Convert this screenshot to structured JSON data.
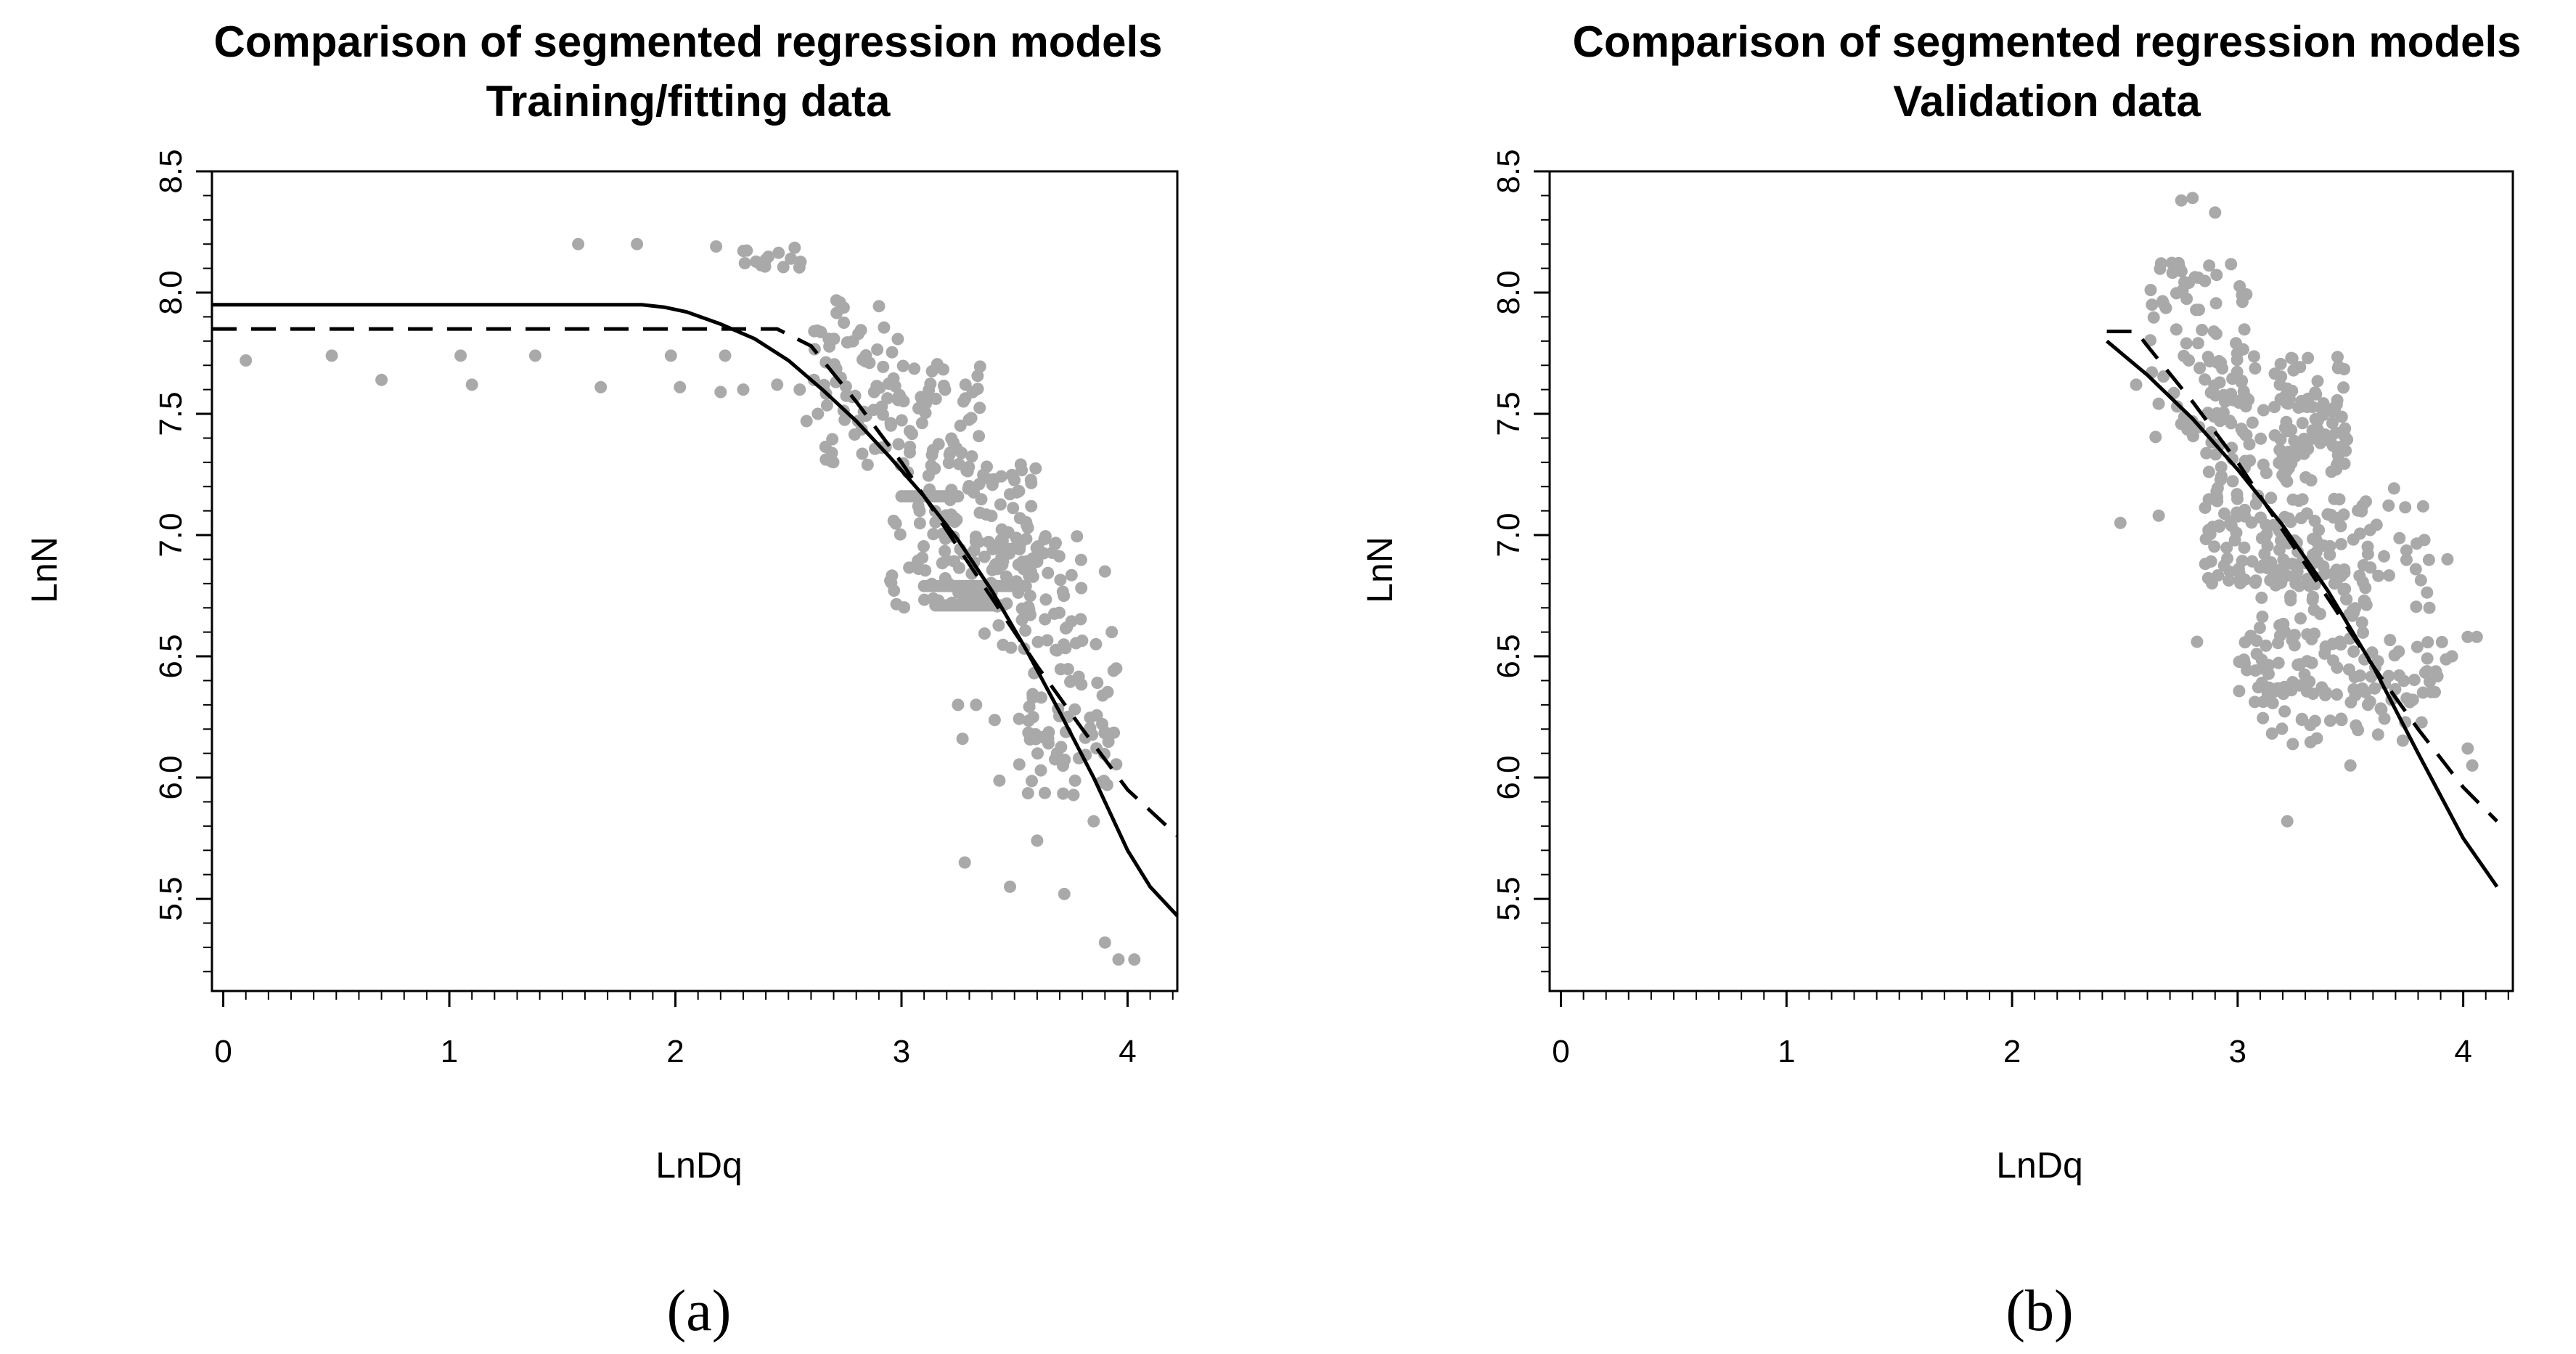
{
  "chart_data": [
    {
      "type": "scatter",
      "title": "Comparison of segmented regression models",
      "subtitle": "Training/fitting data",
      "xlabel": "LnDq",
      "ylabel": "LnN",
      "caption": "(a)",
      "xlim": [
        -0.05,
        4.22
      ],
      "ylim": [
        5.12,
        8.5
      ],
      "xticks": [
        "0",
        "1",
        "2",
        "3",
        "4"
      ],
      "yticks": [
        "5.5",
        "6.0",
        "6.5",
        "7.0",
        "7.5",
        "8.0",
        "8.5"
      ],
      "grid": false,
      "point_color": "#a9a9a9",
      "scatter_seed": 11,
      "points": [
        [
          0.1,
          7.72
        ],
        [
          0.48,
          7.74
        ],
        [
          0.7,
          7.64
        ],
        [
          1.05,
          7.74
        ],
        [
          1.1,
          7.62
        ],
        [
          1.38,
          7.74
        ],
        [
          1.57,
          8.2
        ],
        [
          1.67,
          7.61
        ],
        [
          1.83,
          8.2
        ],
        [
          1.98,
          7.74
        ],
        [
          2.02,
          7.61
        ],
        [
          2.18,
          8.19
        ],
        [
          2.2,
          7.59
        ],
        [
          2.22,
          7.74
        ],
        [
          2.3,
          7.6
        ],
        [
          2.45,
          7.62
        ],
        [
          2.55,
          7.6
        ],
        [
          2.58,
          7.47
        ],
        [
          2.63,
          7.5
        ],
        [
          2.85,
          7.29
        ],
        [
          3.33,
          6.3
        ],
        [
          3.25,
          6.3
        ],
        [
          3.27,
          6.16
        ],
        [
          3.28,
          5.65
        ],
        [
          3.48,
          5.55
        ],
        [
          3.6,
          5.74
        ],
        [
          3.72,
          5.52
        ],
        [
          3.85,
          5.82
        ],
        [
          3.9,
          5.32
        ],
        [
          3.96,
          5.25
        ],
        [
          4.03,
          5.25
        ],
        [
          3.93,
          6.6
        ],
        [
          3.95,
          6.45
        ],
        [
          3.9,
          6.85
        ],
        [
          3.86,
          6.55
        ]
      ],
      "point_clusters": [
        {
          "x": [
            2.27,
            2.63
          ],
          "y": [
            8.1,
            8.2
          ],
          "n": 14
        },
        {
          "x": [
            2.6,
            3.0
          ],
          "y": [
            7.55,
            7.97
          ],
          "n": 40
        },
        {
          "x": [
            2.65,
            3.35
          ],
          "y": [
            7.3,
            7.72
          ],
          "n": 80
        },
        {
          "x": [
            2.95,
            3.6
          ],
          "y": [
            6.7,
            7.3
          ],
          "n": 130
        },
        {
          "x": [
            3.3,
            3.8
          ],
          "y": [
            6.5,
            7.0
          ],
          "n": 70
        },
        {
          "x": [
            3.55,
            3.95
          ],
          "y": [
            5.85,
            6.5
          ],
          "n": 55
        },
        {
          "x": [
            3.4,
            3.7
          ],
          "y": [
            5.85,
            6.3
          ],
          "n": 10
        }
      ],
      "point_rows": [
        {
          "y": 6.71,
          "x": [
            3.15,
            3.45
          ],
          "n": 26
        },
        {
          "y": 6.79,
          "x": [
            3.1,
            3.55
          ],
          "n": 30
        },
        {
          "x": [
            3.0,
            3.25
          ],
          "y": 7.16,
          "n": 22
        }
      ],
      "series": [
        {
          "name": "solid",
          "style": "solid",
          "x": [
            -0.05,
            1.85,
            1.95,
            2.05,
            2.2,
            2.35,
            2.5,
            2.65,
            2.8,
            2.95,
            3.1,
            3.25,
            3.4,
            3.55,
            3.7,
            3.85,
            4.0,
            4.1,
            4.22
          ],
          "y": [
            7.95,
            7.95,
            7.94,
            7.92,
            7.87,
            7.81,
            7.72,
            7.6,
            7.47,
            7.32,
            7.16,
            6.98,
            6.77,
            6.53,
            6.27,
            6.0,
            5.7,
            5.55,
            5.43
          ]
        },
        {
          "name": "dashed",
          "style": "dashed",
          "x": [
            -0.05,
            2.45,
            2.6,
            2.8,
            3.0,
            3.2,
            3.4,
            3.6,
            3.8,
            4.0,
            4.22
          ],
          "y": [
            7.85,
            7.85,
            7.78,
            7.55,
            7.3,
            7.02,
            6.74,
            6.46,
            6.2,
            5.95,
            5.76
          ]
        }
      ]
    },
    {
      "type": "scatter",
      "title": "Comparison of segmented regression models",
      "subtitle": "Validation data",
      "xlabel": "LnDq",
      "ylabel": "LnN",
      "caption": "(b)",
      "xlim": [
        -0.05,
        4.22
      ],
      "ylim": [
        5.12,
        8.5
      ],
      "xticks": [
        "0",
        "1",
        "2",
        "3",
        "4"
      ],
      "yticks": [
        "5.5",
        "6.0",
        "6.5",
        "7.0",
        "7.5",
        "8.0",
        "8.5"
      ],
      "grid": false,
      "point_color": "#a9a9a9",
      "scatter_seed": 29,
      "points": [
        [
          2.48,
          7.05
        ],
        [
          2.55,
          7.62
        ],
        [
          2.65,
          7.08
        ],
        [
          2.62,
          7.95
        ],
        [
          2.75,
          8.38
        ],
        [
          2.8,
          8.39
        ],
        [
          2.9,
          8.33
        ],
        [
          2.82,
          6.56
        ],
        [
          3.22,
          5.82
        ],
        [
          3.5,
          6.05
        ],
        [
          3.93,
          6.9
        ],
        [
          4.02,
          6.58
        ],
        [
          4.06,
          6.58
        ],
        [
          4.02,
          6.12
        ],
        [
          4.04,
          6.05
        ],
        [
          3.95,
          6.5
        ],
        [
          3.85,
          6.7
        ]
      ],
      "point_clusters": [
        {
          "x": [
            2.6,
            3.05
          ],
          "y": [
            7.4,
            8.15
          ],
          "n": 70
        },
        {
          "x": [
            2.85,
            3.5
          ],
          "y": [
            6.8,
            7.75
          ],
          "n": 260
        },
        {
          "x": [
            3.0,
            3.6
          ],
          "y": [
            6.3,
            6.9
          ],
          "n": 110
        },
        {
          "x": [
            3.1,
            3.55
          ],
          "y": [
            6.1,
            6.4
          ],
          "n": 25
        },
        {
          "x": [
            3.5,
            3.9
          ],
          "y": [
            6.3,
            7.2
          ],
          "n": 50
        },
        {
          "x": [
            3.6,
            3.95
          ],
          "y": [
            6.15,
            6.6
          ],
          "n": 25
        }
      ],
      "point_rows": [],
      "series": [
        {
          "name": "solid",
          "style": "solid",
          "x": [
            2.42,
            2.6,
            2.8,
            3.0,
            3.2,
            3.4,
            3.6,
            3.8,
            4.0,
            4.15
          ],
          "y": [
            7.8,
            7.66,
            7.48,
            7.27,
            7.04,
            6.77,
            6.46,
            6.1,
            5.75,
            5.55
          ]
        },
        {
          "name": "dashed",
          "style": "dashed",
          "x": [
            2.42,
            2.55,
            2.6,
            2.8,
            3.0,
            3.2,
            3.4,
            3.6,
            3.8,
            4.0,
            4.15
          ],
          "y": [
            7.84,
            7.84,
            7.78,
            7.55,
            7.3,
            7.02,
            6.74,
            6.46,
            6.2,
            5.96,
            5.82
          ]
        }
      ]
    }
  ]
}
